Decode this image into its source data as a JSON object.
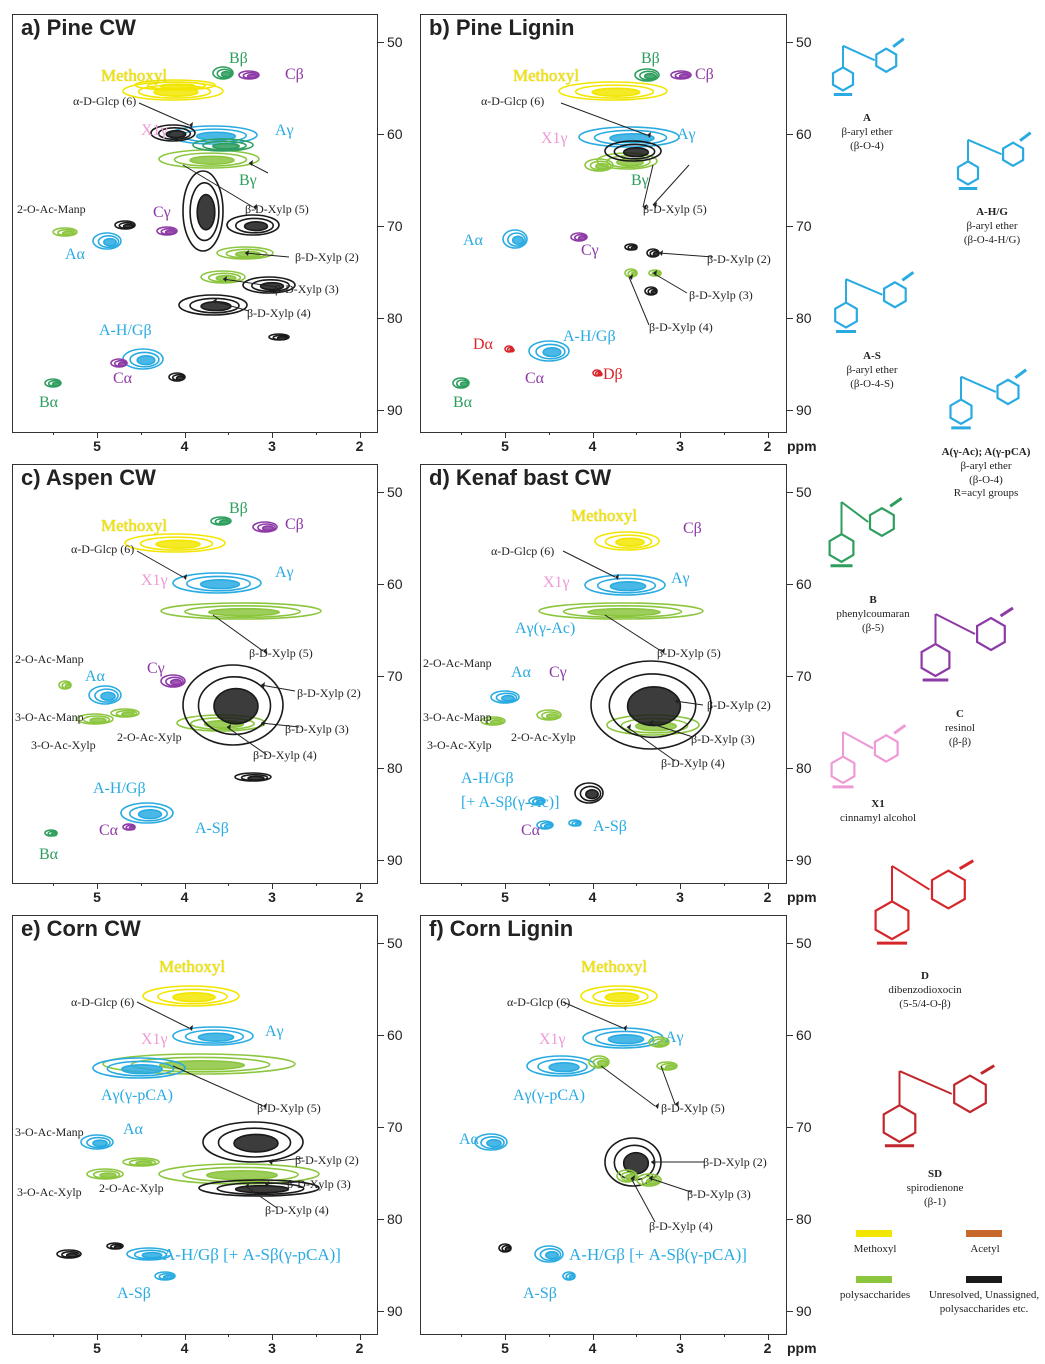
{
  "figure": {
    "ppm_unit": "ppm",
    "colors": {
      "methoxyl": "#f2e600",
      "polysaccharides": "#8cc63f",
      "lignin_A": "#29abe2",
      "lignin_B": "#2e9e5e",
      "lignin_C": "#8e3aa6",
      "cinnamyl_X1": "#ee9ad6",
      "dibenzodioxocin_D": "#d7262b",
      "spirodienone_SD": "#c1272d",
      "acetyl": "#c8692b",
      "unresolved": "#1a1a1a"
    }
  },
  "panels": [
    {
      "title": "a) Pine CW",
      "labels": [
        {
          "t": "Bβ",
          "c": "lignin_B"
        },
        {
          "t": "Cβ",
          "c": "lignin_C"
        },
        {
          "t": "Methoxyl",
          "c": "methoxyl"
        },
        {
          "t": "α-D-Glcp (6)",
          "c": "text"
        },
        {
          "t": "X1γ",
          "c": "cinnamyl_X1"
        },
        {
          "t": "Aγ",
          "c": "lignin_A"
        },
        {
          "t": "Bγ",
          "c": "lignin_B"
        },
        {
          "t": "β-D-Xylp (5)",
          "c": "text"
        },
        {
          "t": "2-O-Ac-Manp",
          "c": "text"
        },
        {
          "t": "Cγ",
          "c": "lignin_C"
        },
        {
          "t": "Aα",
          "c": "lignin_A"
        },
        {
          "t": "β-D-Xylp (2)",
          "c": "text"
        },
        {
          "t": "β-D-Xylp (3)",
          "c": "text"
        },
        {
          "t": "β-D-Xylp (4)",
          "c": "text"
        },
        {
          "t": "A-H/Gβ",
          "c": "lignin_A"
        },
        {
          "t": "Cα",
          "c": "lignin_C"
        },
        {
          "t": "Bα",
          "c": "lignin_B"
        }
      ]
    },
    {
      "title": "b) Pine Lignin",
      "labels": [
        {
          "t": "Bβ",
          "c": "lignin_B"
        },
        {
          "t": "Cβ",
          "c": "lignin_C"
        },
        {
          "t": "Methoxyl",
          "c": "methoxyl"
        },
        {
          "t": "α-D-Glcp (6)",
          "c": "text"
        },
        {
          "t": "X1γ",
          "c": "cinnamyl_X1"
        },
        {
          "t": "Aγ",
          "c": "lignin_A"
        },
        {
          "t": "Bγ",
          "c": "lignin_B"
        },
        {
          "t": "β-D-Xylp (5)",
          "c": "text"
        },
        {
          "t": "Aα",
          "c": "lignin_A"
        },
        {
          "t": "Cγ",
          "c": "lignin_C"
        },
        {
          "t": "β-D-Xylp (2)",
          "c": "text"
        },
        {
          "t": "β-D-Xylp (3)",
          "c": "text"
        },
        {
          "t": "β-D-Xylp (4)",
          "c": "text"
        },
        {
          "t": "Dα",
          "c": "dibenzodioxocin_D"
        },
        {
          "t": "A-H/Gβ",
          "c": "lignin_A"
        },
        {
          "t": "Cα",
          "c": "lignin_C"
        },
        {
          "t": "Dβ",
          "c": "dibenzodioxocin_D"
        },
        {
          "t": "Bα",
          "c": "lignin_B"
        }
      ]
    },
    {
      "title": "c) Aspen CW",
      "labels": [
        {
          "t": "Bβ",
          "c": "lignin_B"
        },
        {
          "t": "Cβ",
          "c": "lignin_C"
        },
        {
          "t": "Methoxyl",
          "c": "methoxyl"
        },
        {
          "t": "α-D-Glcp (6)",
          "c": "text"
        },
        {
          "t": "X1γ",
          "c": "cinnamyl_X1"
        },
        {
          "t": "Aγ",
          "c": "lignin_A"
        },
        {
          "t": "β-D-Xylp (5)",
          "c": "text"
        },
        {
          "t": "2-O-Ac-Manp",
          "c": "text"
        },
        {
          "t": "Aα",
          "c": "lignin_A"
        },
        {
          "t": "Cγ",
          "c": "lignin_C"
        },
        {
          "t": "β-D-Xylp (2)",
          "c": "text"
        },
        {
          "t": "3-O-Ac-Manp",
          "c": "text"
        },
        {
          "t": "2-O-Ac-Xylp",
          "c": "text"
        },
        {
          "t": "β-D-Xylp (3)",
          "c": "text"
        },
        {
          "t": "3-O-Ac-Xylp",
          "c": "text"
        },
        {
          "t": "β-D-Xylp (4)",
          "c": "text"
        },
        {
          "t": "A-H/Gβ",
          "c": "lignin_A"
        },
        {
          "t": "Cα",
          "c": "lignin_C"
        },
        {
          "t": "A-Sβ",
          "c": "lignin_A"
        },
        {
          "t": "Bα",
          "c": "lignin_B"
        }
      ]
    },
    {
      "title": "d) Kenaf bast CW",
      "labels": [
        {
          "t": "Methoxyl",
          "c": "methoxyl"
        },
        {
          "t": "Cβ",
          "c": "lignin_C"
        },
        {
          "t": "α-D-Glcp (6)",
          "c": "text"
        },
        {
          "t": "X1γ",
          "c": "cinnamyl_X1"
        },
        {
          "t": "Aγ",
          "c": "lignin_A"
        },
        {
          "t": "Aγ(γ-Ac)",
          "c": "lignin_A"
        },
        {
          "t": "β-D-Xylp (5)",
          "c": "text"
        },
        {
          "t": "2-O-Ac-Manp",
          "c": "text"
        },
        {
          "t": "Aα",
          "c": "lignin_A"
        },
        {
          "t": "Cγ",
          "c": "lignin_C"
        },
        {
          "t": "β-D-Xylp (2)",
          "c": "text"
        },
        {
          "t": "3-O-Ac-Manp",
          "c": "text"
        },
        {
          "t": "2-O-Ac-Xylp",
          "c": "text"
        },
        {
          "t": "β-D-Xylp (3)",
          "c": "text"
        },
        {
          "t": "3-O-Ac-Xylp",
          "c": "text"
        },
        {
          "t": "β-D-Xylp (4)",
          "c": "text"
        },
        {
          "t": "A-H/Gβ",
          "c": "lignin_A"
        },
        {
          "t": "[+ A-Sβ(γ-Ac)]",
          "c": "lignin_A"
        },
        {
          "t": "Cα",
          "c": "lignin_C"
        },
        {
          "t": "A-Sβ",
          "c": "lignin_A"
        }
      ]
    },
    {
      "title": "e) Corn CW",
      "labels": [
        {
          "t": "Methoxyl",
          "c": "methoxyl"
        },
        {
          "t": "α-D-Glcp (6)",
          "c": "text"
        },
        {
          "t": "X1γ",
          "c": "cinnamyl_X1"
        },
        {
          "t": "Aγ",
          "c": "lignin_A"
        },
        {
          "t": "Aγ(γ-pCA)",
          "c": "lignin_A"
        },
        {
          "t": "β-D-Xylp (5)",
          "c": "text"
        },
        {
          "t": "3-O-Ac-Manp",
          "c": "text"
        },
        {
          "t": "Aα",
          "c": "lignin_A"
        },
        {
          "t": "β-D-Xylp (2)",
          "c": "text"
        },
        {
          "t": "β-D-Xylp (3)",
          "c": "text"
        },
        {
          "t": "3-O-Ac-Xylp",
          "c": "text"
        },
        {
          "t": "2-O-Ac-Xylp",
          "c": "text"
        },
        {
          "t": "β-D-Xylp (4)",
          "c": "text"
        },
        {
          "t": "A-H/Gβ [+ A-Sβ(γ-pCA)]",
          "c": "lignin_A"
        },
        {
          "t": "A-Sβ",
          "c": "lignin_A"
        }
      ]
    },
    {
      "title": "f) Corn Lignin",
      "labels": [
        {
          "t": "Methoxyl",
          "c": "methoxyl"
        },
        {
          "t": "α-D-Glcp (6)",
          "c": "text"
        },
        {
          "t": "X1γ",
          "c": "cinnamyl_X1"
        },
        {
          "t": "Aγ",
          "c": "lignin_A"
        },
        {
          "t": "Aγ(γ-pCA)",
          "c": "lignin_A"
        },
        {
          "t": "β-D-Xylp (5)",
          "c": "text"
        },
        {
          "t": "Aα",
          "c": "lignin_A"
        },
        {
          "t": "β-D-Xylp (2)",
          "c": "text"
        },
        {
          "t": "β-D-Xylp (3)",
          "c": "text"
        },
        {
          "t": "β-D-Xylp (4)",
          "c": "text"
        },
        {
          "t": "A-H/Gβ [+ A-Sβ(γ-pCA)]",
          "c": "lignin_A"
        },
        {
          "t": "A-Sβ",
          "c": "lignin_A"
        }
      ]
    }
  ],
  "structures": [
    {
      "id": "A",
      "name": "A",
      "desc1": "β-aryl ether",
      "desc2": "(β-O-4)",
      "color": "lignin_A"
    },
    {
      "id": "AHG",
      "name": "A-H/G",
      "desc1": "β-aryl ether",
      "desc2": "(β-O-4-H/G)",
      "color": "lignin_A"
    },
    {
      "id": "AS",
      "name": "A-S",
      "desc1": "β-aryl ether",
      "desc2": "(β-O-4-S)",
      "color": "lignin_A"
    },
    {
      "id": "Aacyl",
      "name": "A(γ-Ac); A(γ-pCA)",
      "desc1": "β-aryl ether",
      "desc2": "(β-O-4)",
      "desc3": "R=acyl groups",
      "color": "lignin_A"
    },
    {
      "id": "B",
      "name": "B",
      "desc1": "phenylcoumaran",
      "desc2": "(β-5)",
      "color": "lignin_B"
    },
    {
      "id": "C",
      "name": "C",
      "desc1": "resinol",
      "desc2": "(β-β)",
      "color": "lignin_C"
    },
    {
      "id": "X1",
      "name": "X1",
      "desc1": "cinnamyl alcohol",
      "desc2": "",
      "color": "cinnamyl_X1"
    },
    {
      "id": "D",
      "name": "D",
      "desc1": "dibenzodioxocin",
      "desc2": "(5-5/4-O-β)",
      "color": "dibenzodioxocin_D"
    },
    {
      "id": "SD",
      "name": "SD",
      "desc1": "spirodienone",
      "desc2": "(β-1)",
      "color": "spirodienone_SD"
    }
  ],
  "legend": [
    {
      "label": "Methoxyl",
      "color": "methoxyl"
    },
    {
      "label": "Acetyl",
      "color": "acetyl"
    },
    {
      "label": "polysaccharides",
      "color": "polysaccharides"
    },
    {
      "label": "Unresolved, Unassigned, polysaccharides etc.",
      "color": "unresolved"
    }
  ],
  "chart_data": [
    {
      "type": "heatmap",
      "title": "a) Pine CW",
      "xlabel": "ppm",
      "xlim": [
        5.8,
        1.6
      ],
      "ylim": [
        45,
        92
      ],
      "x_ticks": [
        "5",
        "4",
        "3",
        "2"
      ],
      "y_ticks": [
        "50",
        "60",
        "70",
        "80",
        "90"
      ],
      "peaks": [
        {
          "label": "Methoxyl",
          "x": 3.8,
          "y": 55.8
        },
        {
          "label": "Aγ",
          "x": 3.6,
          "y": 60.0
        },
        {
          "label": "Bβ",
          "x": 3.5,
          "y": 53.2
        },
        {
          "label": "Cβ",
          "x": 3.1,
          "y": 53.8
        },
        {
          "label": "Aα",
          "x": 4.9,
          "y": 71.8
        },
        {
          "label": "A-H/Gβ",
          "x": 4.3,
          "y": 83.9
        },
        {
          "label": "Bα",
          "x": 5.5,
          "y": 87.1
        },
        {
          "label": "Cα",
          "x": 4.7,
          "y": 85.3
        }
      ]
    },
    {
      "type": "heatmap",
      "title": "b) Pine Lignin",
      "xlabel": "ppm",
      "xlim": [
        5.8,
        1.6
      ],
      "ylim": [
        45,
        92
      ],
      "x_ticks": [
        "5",
        "4",
        "3",
        "2"
      ],
      "y_ticks": [
        "50",
        "60",
        "70",
        "80",
        "90"
      ],
      "peaks": [
        {
          "label": "Methoxyl",
          "x": 3.8,
          "y": 55.8
        },
        {
          "label": "Aγ",
          "x": 3.6,
          "y": 60.0
        },
        {
          "label": "Bβ",
          "x": 3.5,
          "y": 53.2
        },
        {
          "label": "Aα",
          "x": 4.9,
          "y": 71.8
        },
        {
          "label": "Dα",
          "x": 4.9,
          "y": 83.0
        },
        {
          "label": "Dβ",
          "x": 3.9,
          "y": 85.8
        },
        {
          "label": "A-H/Gβ",
          "x": 4.3,
          "y": 84.0
        },
        {
          "label": "Bα",
          "x": 5.5,
          "y": 87.2
        }
      ]
    },
    {
      "type": "heatmap",
      "title": "c) Aspen CW",
      "xlabel": "ppm",
      "xlim": [
        5.8,
        1.6
      ],
      "ylim": [
        45,
        92
      ],
      "x_ticks": [
        "5",
        "4",
        "3",
        "2"
      ],
      "y_ticks": [
        "50",
        "60",
        "70",
        "80",
        "90"
      ],
      "peaks": [
        {
          "label": "Methoxyl",
          "x": 3.8,
          "y": 55.8
        },
        {
          "label": "Aγ",
          "x": 3.6,
          "y": 60.0
        },
        {
          "label": "Aα",
          "x": 4.9,
          "y": 71.9
        },
        {
          "label": "A-H/Gβ",
          "x": 4.3,
          "y": 84.0
        },
        {
          "label": "A-Sβ",
          "x": 4.1,
          "y": 86.2
        },
        {
          "label": "Cα",
          "x": 4.7,
          "y": 85.1
        },
        {
          "label": "Bα",
          "x": 5.5,
          "y": 87.0
        }
      ]
    },
    {
      "type": "heatmap",
      "title": "d) Kenaf bast CW",
      "xlabel": "ppm",
      "xlim": [
        5.8,
        1.6
      ],
      "ylim": [
        45,
        92
      ],
      "x_ticks": [
        "5",
        "4",
        "3",
        "2"
      ],
      "y_ticks": [
        "50",
        "60",
        "70",
        "80",
        "90"
      ],
      "peaks": [
        {
          "label": "Methoxyl",
          "x": 3.8,
          "y": 55.8
        },
        {
          "label": "Aγ",
          "x": 3.6,
          "y": 60.0
        },
        {
          "label": "Aγ(γ-Ac)",
          "x": 4.2,
          "y": 63.0
        },
        {
          "label": "Aα",
          "x": 4.9,
          "y": 71.9
        },
        {
          "label": "A-H/Gβ",
          "x": 4.3,
          "y": 83.8
        },
        {
          "label": "A-Sβ",
          "x": 4.1,
          "y": 86.2
        }
      ]
    },
    {
      "type": "heatmap",
      "title": "e) Corn CW",
      "xlabel": "ppm",
      "xlim": [
        5.8,
        1.6
      ],
      "ylim": [
        45,
        92
      ],
      "x_ticks": [
        "5",
        "4",
        "3",
        "2"
      ],
      "y_ticks": [
        "50",
        "60",
        "70",
        "80",
        "90"
      ],
      "peaks": [
        {
          "label": "Methoxyl",
          "x": 3.8,
          "y": 55.8
        },
        {
          "label": "Aγ",
          "x": 3.6,
          "y": 60.0
        },
        {
          "label": "Aγ(γ-pCA)",
          "x": 4.3,
          "y": 63.2
        },
        {
          "label": "Aα",
          "x": 4.9,
          "y": 71.8
        },
        {
          "label": "A-H/Gβ",
          "x": 4.3,
          "y": 83.8
        },
        {
          "label": "A-Sβ",
          "x": 4.1,
          "y": 86.3
        }
      ]
    },
    {
      "type": "heatmap",
      "title": "f) Corn Lignin",
      "xlabel": "ppm",
      "xlim": [
        5.8,
        1.6
      ],
      "ylim": [
        45,
        92
      ],
      "x_ticks": [
        "5",
        "4",
        "3",
        "2"
      ],
      "y_ticks": [
        "50",
        "60",
        "70",
        "80",
        "90"
      ],
      "peaks": [
        {
          "label": "Methoxyl",
          "x": 3.8,
          "y": 55.8
        },
        {
          "label": "Aγ",
          "x": 3.6,
          "y": 60.2
        },
        {
          "label": "Aγ(γ-pCA)",
          "x": 4.3,
          "y": 63.3
        },
        {
          "label": "Aα",
          "x": 4.9,
          "y": 71.9
        },
        {
          "label": "A-H/Gβ",
          "x": 4.3,
          "y": 83.8
        },
        {
          "label": "A-Sβ",
          "x": 4.1,
          "y": 86.3
        }
      ]
    }
  ]
}
